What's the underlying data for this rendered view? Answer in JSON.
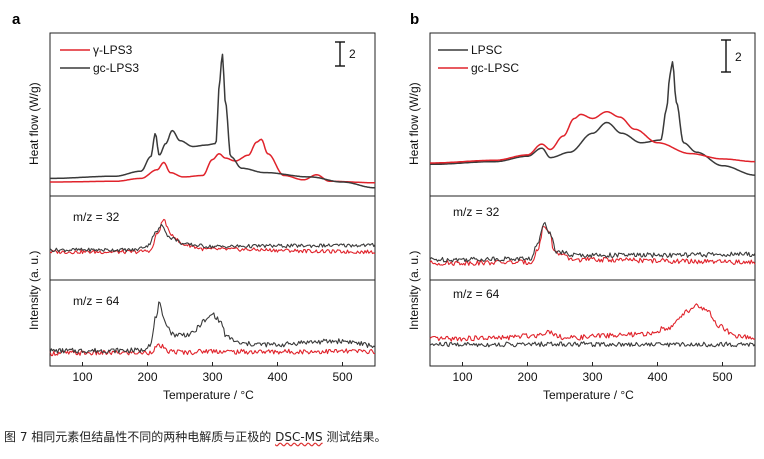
{
  "caption": {
    "prefix": "图 7 相同元素但结晶性不同的两种电解质与正极的 ",
    "highlight": "DSC-MS",
    "suffix": " 测试结果。"
  },
  "colors": {
    "red": "#e0232b",
    "dark": "#3a3a3a"
  },
  "chart_data": [
    {
      "panel": "a",
      "type": "line",
      "xlabel": "Temperature / °C",
      "xlim": [
        50,
        550
      ],
      "xticks": [
        100,
        200,
        300,
        400,
        500
      ],
      "scale_bar": "2",
      "subplots": [
        {
          "id": "heat",
          "ylabel": "Heat flow  (W/g)",
          "annotation": "",
          "series": [
            {
              "name": "γ-LPS3",
              "color": "red",
              "points": [
                [
                  50,
                  0.55
                ],
                [
                  150,
                  0.6
                ],
                [
                  190,
                  0.8
                ],
                [
                  215,
                  1.4
                ],
                [
                  225,
                  1.9
                ],
                [
                  235,
                  1.2
                ],
                [
                  255,
                  0.9
                ],
                [
                  285,
                  1.0
                ],
                [
                  300,
                  2.1
                ],
                [
                  310,
                  2.5
                ],
                [
                  320,
                  2.2
                ],
                [
                  335,
                  2.0
                ],
                [
                  355,
                  2.4
                ],
                [
                  368,
                  3.3
                ],
                [
                  375,
                  3.5
                ],
                [
                  385,
                  2.5
                ],
                [
                  410,
                  1.0
                ],
                [
                  440,
                  0.7
                ],
                [
                  460,
                  1.05
                ],
                [
                  480,
                  0.6
                ],
                [
                  550,
                  0.5
                ]
              ]
            },
            {
              "name": "gc-LPS3",
              "color": "dark",
              "points": [
                [
                  50,
                  0.8
                ],
                [
                  150,
                  0.95
                ],
                [
                  190,
                  1.3
                ],
                [
                  205,
                  2.3
                ],
                [
                  212,
                  3.9
                ],
                [
                  218,
                  2.4
                ],
                [
                  228,
                  3.2
                ],
                [
                  238,
                  4.1
                ],
                [
                  250,
                  3.4
                ],
                [
                  270,
                  3.0
                ],
                [
                  290,
                  3.1
                ],
                [
                  305,
                  3.2
                ],
                [
                  311,
                  7.5
                ],
                [
                  315,
                  9.4
                ],
                [
                  320,
                  6.0
                ],
                [
                  328,
                  2.3
                ],
                [
                  345,
                  1.5
                ],
                [
                  380,
                  1.2
                ],
                [
                  450,
                  0.9
                ],
                [
                  500,
                  0.55
                ],
                [
                  550,
                  0.15
                ]
              ]
            }
          ]
        },
        {
          "id": "ms32",
          "ylabel": "",
          "annotation": "m/z = 32",
          "series": [
            {
              "name": "γ-LPS3",
              "color": "red",
              "points": [
                [
                  50,
                  1.5
                ],
                [
                  180,
                  1.5
                ],
                [
                  205,
                  1.7
                ],
                [
                  215,
                  4.2
                ],
                [
                  225,
                  6.3
                ],
                [
                  235,
                  4.2
                ],
                [
                  255,
                  2.6
                ],
                [
                  290,
                  1.9
                ],
                [
                  550,
                  1.5
                ]
              ]
            },
            {
              "name": "gc-LPS3",
              "color": "dark",
              "points": [
                [
                  50,
                  1.8
                ],
                [
                  180,
                  1.8
                ],
                [
                  200,
                  2.4
                ],
                [
                  212,
                  4.3
                ],
                [
                  222,
                  5.4
                ],
                [
                  235,
                  3.6
                ],
                [
                  260,
                  2.6
                ],
                [
                  300,
                  2.3
                ],
                [
                  400,
                  2.4
                ],
                [
                  550,
                  2.5
                ]
              ]
            }
          ]
        },
        {
          "id": "ms64",
          "ylabel": "",
          "annotation": "m/z = 64",
          "series": [
            {
              "name": "γ-LPS3",
              "color": "red",
              "points": [
                [
                  50,
                  0.3
                ],
                [
                  200,
                  0.35
                ],
                [
                  220,
                  1.1
                ],
                [
                  230,
                  0.5
                ],
                [
                  260,
                  0.4
                ],
                [
                  300,
                  0.55
                ],
                [
                  330,
                  0.45
                ],
                [
                  550,
                  0.5
                ]
              ]
            },
            {
              "name": "gc-LPS3",
              "color": "dark",
              "points": [
                [
                  50,
                  0.55
                ],
                [
                  190,
                  0.6
                ],
                [
                  205,
                  1.3
                ],
                [
                  213,
                  4.2
                ],
                [
                  218,
                  5.6
                ],
                [
                  225,
                  3.8
                ],
                [
                  240,
                  2.3
                ],
                [
                  265,
                  2.3
                ],
                [
                  290,
                  3.8
                ],
                [
                  300,
                  4.5
                ],
                [
                  312,
                  3.7
                ],
                [
                  322,
                  2.0
                ],
                [
                  345,
                  1.3
                ],
                [
                  400,
                  1.2
                ],
                [
                  450,
                  1.5
                ],
                [
                  500,
                  1.6
                ],
                [
                  550,
                  1.1
                ]
              ]
            }
          ]
        }
      ]
    },
    {
      "panel": "b",
      "type": "line",
      "xlabel": "Temperature / °C",
      "xlim": [
        50,
        550
      ],
      "xticks": [
        100,
        200,
        300,
        400,
        500
      ],
      "scale_bar": "2",
      "subplots": [
        {
          "id": "heat",
          "ylabel": "Heat flow  (W/g)",
          "annotation": "",
          "series": [
            {
              "name": "LPSC",
              "color": "dark",
              "points": [
                [
                  50,
                  1.9
                ],
                [
                  150,
                  2.1
                ],
                [
                  200,
                  2.5
                ],
                [
                  222,
                  3.1
                ],
                [
                  235,
                  2.4
                ],
                [
                  265,
                  2.8
                ],
                [
                  300,
                  4.2
                ],
                [
                  322,
                  5.0
                ],
                [
                  345,
                  4.2
                ],
                [
                  375,
                  3.5
                ],
                [
                  405,
                  3.7
                ],
                [
                  414,
                  6.0
                ],
                [
                  419,
                  8.5
                ],
                [
                  423,
                  9.5
                ],
                [
                  429,
                  6.5
                ],
                [
                  440,
                  3.5
                ],
                [
                  460,
                  2.8
                ],
                [
                  500,
                  1.8
                ],
                [
                  550,
                  1.1
                ]
              ]
            },
            {
              "name": "gc-LPSC",
              "color": "red",
              "points": [
                [
                  50,
                  2.0
                ],
                [
                  150,
                  2.2
                ],
                [
                  200,
                  2.6
                ],
                [
                  222,
                  3.4
                ],
                [
                  235,
                  3.0
                ],
                [
                  255,
                  4.0
                ],
                [
                  272,
                  5.3
                ],
                [
                  282,
                  5.6
                ],
                [
                  300,
                  5.3
                ],
                [
                  322,
                  5.8
                ],
                [
                  342,
                  5.4
                ],
                [
                  365,
                  4.5
                ],
                [
                  400,
                  3.5
                ],
                [
                  450,
                  2.7
                ],
                [
                  500,
                  2.3
                ],
                [
                  550,
                  2.1
                ]
              ]
            }
          ]
        },
        {
          "id": "ms32",
          "ylabel": "",
          "annotation": "m/z = 32",
          "series": [
            {
              "name": "gc-LPSC",
              "color": "red",
              "points": [
                [
                  50,
                  1.0
                ],
                [
                  205,
                  1.1
                ],
                [
                  216,
                  2.5
                ],
                [
                  225,
                  5.2
                ],
                [
                  233,
                  4.6
                ],
                [
                  242,
                  2.2
                ],
                [
                  270,
                  1.4
                ],
                [
                  550,
                  1.1
                ]
              ]
            },
            {
              "name": "LPSC",
              "color": "dark",
              "points": [
                [
                  50,
                  1.4
                ],
                [
                  205,
                  1.5
                ],
                [
                  216,
                  3.2
                ],
                [
                  226,
                  5.7
                ],
                [
                  234,
                  4.5
                ],
                [
                  244,
                  2.4
                ],
                [
                  270,
                  1.9
                ],
                [
                  400,
                  1.9
                ],
                [
                  550,
                  2.0
                ]
              ]
            }
          ]
        },
        {
          "id": "ms64",
          "ylabel": "",
          "annotation": "m/z = 64",
          "series": [
            {
              "name": "LPSC",
              "color": "dark",
              "points": [
                [
                  50,
                  0.6
                ],
                [
                  200,
                  0.6
                ],
                [
                  230,
                  0.65
                ],
                [
                  550,
                  0.6
                ]
              ]
            },
            {
              "name": "gc-LPSC",
              "color": "red",
              "points": [
                [
                  50,
                  1.2
                ],
                [
                  150,
                  1.3
                ],
                [
                  215,
                  1.6
                ],
                [
                  230,
                  2.0
                ],
                [
                  260,
                  1.3
                ],
                [
                  330,
                  1.6
                ],
                [
                  380,
                  1.7
                ],
                [
                  420,
                  2.5
                ],
                [
                  445,
                  4.2
                ],
                [
                  460,
                  4.9
                ],
                [
                  475,
                  4.3
                ],
                [
                  495,
                  2.6
                ],
                [
                  520,
                  1.5
                ],
                [
                  550,
                  1.3
                ]
              ]
            }
          ]
        }
      ]
    }
  ],
  "labels": {
    "intensity": "Intensity  (a. u.)"
  }
}
